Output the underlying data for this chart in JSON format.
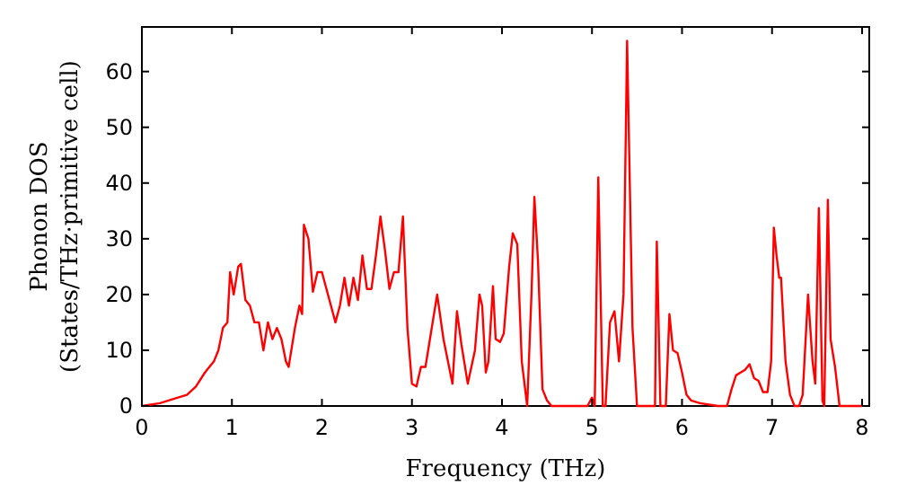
{
  "chart_data": {
    "type": "line",
    "xlabel": "Frequency (THz)",
    "ylabel": "Phonon DOS\n(States/THz·primitive cell)",
    "xlim": [
      0,
      8.08
    ],
    "ylim": [
      0,
      68
    ],
    "xticks": [
      0,
      1,
      2,
      3,
      4,
      5,
      6,
      7,
      8
    ],
    "yticks": [
      0,
      10,
      20,
      30,
      40,
      50,
      60
    ],
    "grid": false,
    "marker": "none",
    "line_style": "solid",
    "x": [
      0,
      0.2,
      0.4,
      0.5,
      0.6,
      0.7,
      0.8,
      0.85,
      0.9,
      0.95,
      0.98,
      1.02,
      1.07,
      1.1,
      1.15,
      1.2,
      1.25,
      1.3,
      1.35,
      1.4,
      1.45,
      1.5,
      1.55,
      1.6,
      1.63,
      1.7,
      1.75,
      1.78,
      1.8,
      1.85,
      1.9,
      1.95,
      2.0,
      2.05,
      2.1,
      2.15,
      2.2,
      2.25,
      2.3,
      2.35,
      2.4,
      2.45,
      2.5,
      2.55,
      2.6,
      2.65,
      2.7,
      2.75,
      2.8,
      2.85,
      2.9,
      2.95,
      3.0,
      3.05,
      3.1,
      3.15,
      3.2,
      3.28,
      3.35,
      3.45,
      3.5,
      3.55,
      3.62,
      3.7,
      3.75,
      3.78,
      3.82,
      3.85,
      3.9,
      3.93,
      3.98,
      4.02,
      4.08,
      4.12,
      4.17,
      4.22,
      4.28,
      4.33,
      4.36,
      4.4,
      4.45,
      4.5,
      4.55,
      4.95,
      5.0,
      5.03,
      5.07,
      5.12,
      5.15,
      5.2,
      5.25,
      5.3,
      5.35,
      5.39,
      5.45,
      5.5,
      5.7,
      5.72,
      5.76,
      5.82,
      5.86,
      5.9,
      5.95,
      6.0,
      6.05,
      6.1,
      6.2,
      6.4,
      6.5,
      6.55,
      6.6,
      6.65,
      6.7,
      6.75,
      6.8,
      6.85,
      6.9,
      6.95,
      6.99,
      7.02,
      7.05,
      7.08,
      7.1,
      7.15,
      7.2,
      7.25,
      7.3,
      7.34,
      7.4,
      7.45,
      7.48,
      7.52,
      7.56,
      7.58,
      7.62,
      7.65,
      7.7,
      7.75,
      8.0
    ],
    "series": [
      {
        "color": "#ff0000",
        "values": [
          0,
          0.5,
          1.5,
          2,
          3.5,
          6,
          8,
          10,
          14,
          15,
          24,
          20,
          25,
          25.5,
          19,
          18,
          15,
          15,
          10,
          15,
          12,
          14,
          12,
          8,
          7,
          14,
          18,
          16.5,
          32.5,
          30,
          20.5,
          24,
          24,
          21,
          18,
          15,
          18,
          23,
          18,
          23,
          19,
          27,
          21,
          21,
          27,
          34,
          28,
          21,
          24,
          24,
          34,
          14,
          4,
          3.5,
          7,
          7,
          12,
          20,
          12,
          4,
          17,
          11,
          4,
          10,
          20,
          18,
          6,
          8,
          21.5,
          12,
          11.5,
          13,
          25,
          31,
          29,
          8,
          0,
          21,
          37.5,
          26,
          3,
          1,
          0,
          0,
          1.5,
          0,
          41,
          0,
          0,
          15,
          17,
          8,
          20,
          65.5,
          14,
          0,
          0,
          29.5,
          0,
          0,
          16.5,
          10,
          9.5,
          6,
          2,
          1,
          0.5,
          0,
          0,
          3,
          5.5,
          6,
          6.5,
          7.5,
          5,
          4.5,
          2.5,
          2.5,
          8,
          32,
          27,
          23,
          23,
          8,
          2,
          0,
          0,
          2,
          20,
          8,
          4,
          35.5,
          1,
          0,
          37,
          12,
          7,
          0,
          0
        ]
      }
    ]
  }
}
